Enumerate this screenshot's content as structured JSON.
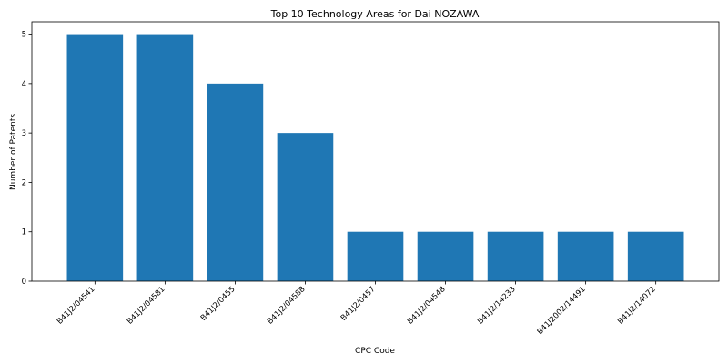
{
  "chart_data": {
    "type": "bar",
    "title": "Top 10 Technology Areas for Dai NOZAWA",
    "xlabel": "CPC Code",
    "ylabel": "Number of Patents",
    "categories": [
      "B41J2/04541",
      "B41J2/04581",
      "B41J2/0455",
      "B41J2/04588",
      "B41J2/0457",
      "B41J2/04548",
      "B41J2/14233",
      "B41J2002/14491",
      "B41J2/14072"
    ],
    "values": [
      5,
      5,
      4,
      3,
      1,
      1,
      1,
      1,
      1
    ],
    "ylim": [
      0,
      5.25
    ],
    "yticks": [
      0,
      1,
      2,
      3,
      4,
      5
    ],
    "grid": false,
    "bar_color": "#1f77b4"
  }
}
